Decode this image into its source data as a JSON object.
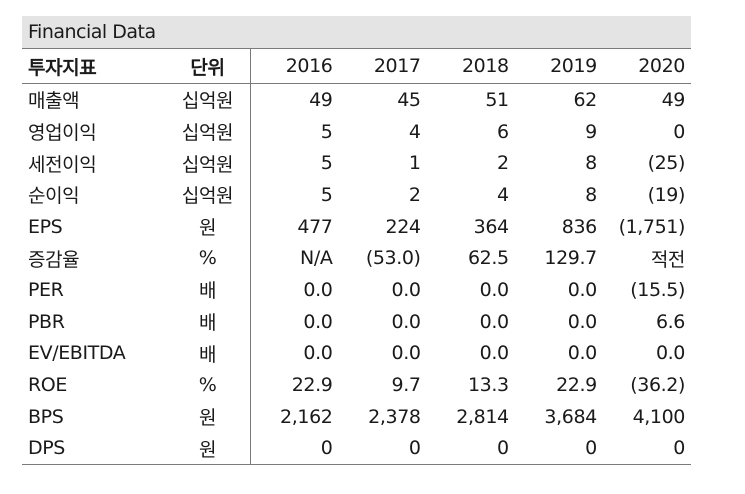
{
  "title": "Financial Data",
  "header": {
    "label": "투자지표",
    "unit": "단위",
    "years": [
      "2016",
      "2017",
      "2018",
      "2019",
      "2020"
    ]
  },
  "rows": [
    {
      "label": "매출액",
      "unit": "십억원",
      "values": [
        "49",
        "45",
        "51",
        "62",
        "49"
      ]
    },
    {
      "label": "영업이익",
      "unit": "십억원",
      "values": [
        "5",
        "4",
        "6",
        "9",
        "0"
      ]
    },
    {
      "label": "세전이익",
      "unit": "십억원",
      "values": [
        "5",
        "1",
        "2",
        "8",
        "(25)"
      ]
    },
    {
      "label": "순이익",
      "unit": "십억원",
      "values": [
        "5",
        "2",
        "4",
        "8",
        "(19)"
      ]
    },
    {
      "label": "EPS",
      "unit": "원",
      "values": [
        "477",
        "224",
        "364",
        "836",
        "(1,751)"
      ]
    },
    {
      "label": "증감율",
      "unit": "%",
      "values": [
        "N/A",
        "(53.0)",
        "62.5",
        "129.7",
        "적전"
      ]
    },
    {
      "label": "PER",
      "unit": "배",
      "values": [
        "0.0",
        "0.0",
        "0.0",
        "0.0",
        "(15.5)"
      ]
    },
    {
      "label": "PBR",
      "unit": "배",
      "values": [
        "0.0",
        "0.0",
        "0.0",
        "0.0",
        "6.6"
      ]
    },
    {
      "label": "EV/EBITDA",
      "unit": "배",
      "values": [
        "0.0",
        "0.0",
        "0.0",
        "0.0",
        "0.0"
      ]
    },
    {
      "label": "ROE",
      "unit": "%",
      "values": [
        "22.9",
        "9.7",
        "13.3",
        "22.9",
        "(36.2)"
      ]
    },
    {
      "label": "BPS",
      "unit": "원",
      "values": [
        "2,162",
        "2,378",
        "2,814",
        "3,684",
        "4,100"
      ]
    },
    {
      "label": "DPS",
      "unit": "원",
      "values": [
        "0",
        "0",
        "0",
        "0",
        "0"
      ]
    }
  ]
}
